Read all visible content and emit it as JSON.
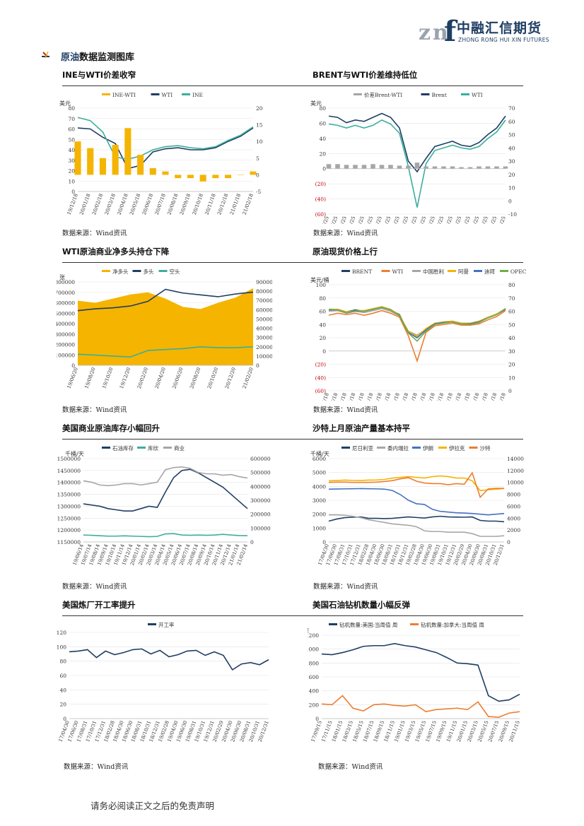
{
  "header": {
    "logo_cn": "中融汇信期货",
    "logo_en": "ZHONG RONG HUI XIN FUTURES"
  },
  "section": {
    "title_hl": "原油",
    "title_rest": "数据监测图库"
  },
  "charts": [
    {
      "title": "INE与WTI价差收窄",
      "source": "数据来源：Wind资讯"
    },
    {
      "title": "BRENT与WTI价差维持低位",
      "source": "数据来源：Wind资讯"
    },
    {
      "title": "WTI原油商业净多头持仓下降",
      "source": "数据来源：Wind资讯"
    },
    {
      "title": "原油现货价格上行",
      "source": "数据来源：Wind资讯"
    },
    {
      "title": "美国商业原油库存小幅回升",
      "source": "数据来源：Wind资讯"
    },
    {
      "title": "沙特上月原油产量基本持平",
      "source": "数据来源：Wind资讯"
    },
    {
      "title": "美国炼厂开工率提升",
      "source": "数据来源：Wind资讯"
    },
    {
      "title": "美国石油钻机数量小幅反弹",
      "source": "数据来源：Wind资讯"
    }
  ],
  "footer": {
    "text": "请务必阅读正文之后的免责声明"
  },
  "colors": {
    "navy": "#1f3e63",
    "orange": "#f5b400",
    "teal": "#3aaf9c",
    "gray": "#a6a6a6",
    "blue": "#4472c4",
    "rust": "#ed7d31",
    "green": "#70ad47"
  },
  "chart_data": [
    {
      "type": "line",
      "ylabel": "美元",
      "legend": [
        "INE-WTI",
        "WTI",
        "INE"
      ],
      "legend_position": "top",
      "x": [
        "19/12/18",
        "20/01/18",
        "20/02/18",
        "20/03/18",
        "20/04/18",
        "20/05/18",
        "20/06/18",
        "20/07/18",
        "20/08/18",
        "20/09/18",
        "20/10/18",
        "20/11/18",
        "20/12/18",
        "21/01/18",
        "21/02/18"
      ],
      "ylim": [
        0,
        80
      ],
      "y_ticks": [
        0,
        10,
        20,
        30,
        40,
        50,
        60,
        70,
        80
      ],
      "y2lim": [
        -5,
        20
      ],
      "y2_ticks": [
        -5,
        0,
        5,
        10,
        15,
        20
      ],
      "series": [
        {
          "name": "WTI",
          "axis": "left",
          "values": [
            61,
            60,
            52,
            46,
            22,
            25,
            38,
            41,
            42,
            40,
            40,
            42,
            48,
            53,
            61
          ]
        },
        {
          "name": "INE",
          "axis": "left",
          "values": [
            71,
            68,
            57,
            33,
            31,
            34,
            40,
            43,
            44,
            42,
            41,
            43,
            49,
            54,
            62
          ]
        },
        {
          "name": "INE-WTI",
          "axis": "right",
          "type": "bar",
          "values": [
            10,
            8,
            5,
            9,
            14,
            6,
            2,
            1,
            -1,
            -1,
            -2,
            -1,
            -1,
            0,
            1
          ]
        }
      ]
    },
    {
      "type": "line",
      "ylabel": "美元",
      "legend": [
        "价差Brent-WTI",
        "Brent",
        "WTI"
      ],
      "legend_position": "top",
      "x": [
        "19/06/25",
        "19/07/25",
        "19/08/25",
        "19/09/25",
        "19/10/25",
        "19/11/25",
        "19/12/25",
        "20/01/25",
        "20/02/25",
        "20/03/25",
        "20/04/25",
        "20/05/25",
        "20/06/25",
        "20/07/25",
        "20/08/25",
        "20/09/25",
        "20/10/25",
        "20/11/25",
        "20/12/25",
        "21/01/25",
        "21/02/25"
      ],
      "ylim": [
        -60,
        80
      ],
      "y_ticks": [
        "(60)",
        "(40)",
        "(20)",
        "0",
        "20",
        "40",
        "60",
        "80"
      ],
      "y2lim": [
        -10,
        70
      ],
      "y2_ticks": [
        -10,
        0,
        10,
        20,
        30,
        40,
        50,
        60,
        70
      ],
      "series": [
        {
          "name": "Brent",
          "axis": "right",
          "values": [
            64,
            63,
            59,
            61,
            60,
            63,
            66,
            63,
            55,
            30,
            22,
            32,
            41,
            43,
            45,
            42,
            41,
            44,
            50,
            55,
            64
          ]
        },
        {
          "name": "WTI",
          "axis": "right",
          "values": [
            58,
            57,
            55,
            57,
            55,
            57,
            61,
            58,
            51,
            26,
            -5,
            28,
            38,
            40,
            42,
            40,
            39,
            41,
            47,
            52,
            61
          ]
        },
        {
          "name": "价差Brent-WTI",
          "axis": "left",
          "type": "bar",
          "values": [
            6,
            6,
            5,
            5,
            5,
            6,
            5,
            5,
            4,
            4,
            8,
            3,
            3,
            3,
            3,
            2,
            2,
            3,
            3,
            3,
            3
          ]
        }
      ]
    },
    {
      "type": "line",
      "ylabel": "张",
      "legend": [
        "净多头",
        "多头",
        "空头"
      ],
      "legend_position": "top",
      "x": [
        "19/06/20",
        "19/08/20",
        "19/10/20",
        "19/12/20",
        "20/02/20",
        "20/04/20",
        "20/06/20",
        "20/08/20",
        "20/10/20",
        "20/12/20",
        "21/02/20"
      ],
      "ylim": [
        0,
        800000
      ],
      "y_ticks": [
        0,
        100000,
        200000,
        300000,
        400000,
        500000,
        600000,
        700000,
        800000
      ],
      "y2lim": [
        0,
        900000
      ],
      "y2_ticks": [
        0,
        100000,
        200000,
        300000,
        400000,
        500000,
        600000,
        700000,
        800000,
        900000
      ],
      "series": [
        {
          "name": "净多头",
          "axis": "left",
          "type": "area",
          "values": [
            620000,
            600000,
            640000,
            680000,
            700000,
            640000,
            560000,
            540000,
            600000,
            650000,
            740000
          ]
        },
        {
          "name": "多头",
          "axis": "right",
          "values": [
            590000,
            610000,
            620000,
            640000,
            690000,
            820000,
            780000,
            760000,
            740000,
            770000,
            790000
          ]
        },
        {
          "name": "空头",
          "axis": "right",
          "values": [
            120000,
            110000,
            100000,
            90000,
            160000,
            170000,
            180000,
            200000,
            190000,
            190000,
            200000
          ]
        }
      ]
    },
    {
      "type": "line",
      "ylabel": "美元/桶",
      "legend": [
        "BRENT",
        "WTI",
        "中国胜利",
        "阿曼",
        "迪拜",
        "OPEC"
      ],
      "legend_position": "top",
      "x": [
        "19/06/18",
        "19/07/18",
        "19/08/18",
        "19/09/18",
        "19/10/18",
        "19/11/18",
        "19/12/18",
        "20/01/18",
        "20/02/18",
        "20/03/18",
        "20/04/18",
        "20/05/18",
        "20/06/18",
        "20/07/18",
        "20/08/18",
        "20/09/18",
        "20/10/18",
        "20/11/18",
        "20/12/18",
        "21/01/18",
        "21/02/18"
      ],
      "ylim": [
        -60,
        100
      ],
      "y_ticks": [
        "(60)",
        "(40)",
        "(20)",
        "0",
        "20",
        "40",
        "60",
        "80",
        "100"
      ],
      "y2lim": [
        0,
        80
      ],
      "y2_ticks": [
        0,
        10,
        20,
        30,
        40,
        50,
        60,
        70,
        80
      ],
      "series": [
        {
          "name": "BRENT",
          "values": [
            62,
            63,
            59,
            62,
            60,
            63,
            66,
            62,
            55,
            28,
            20,
            32,
            41,
            43,
            44,
            41,
            41,
            44,
            50,
            55,
            64
          ]
        },
        {
          "name": "WTI",
          "values": [
            54,
            57,
            55,
            57,
            54,
            57,
            61,
            57,
            51,
            23,
            -15,
            28,
            38,
            40,
            42,
            39,
            39,
            41,
            47,
            52,
            61
          ]
        },
        {
          "name": "中国胜利",
          "values": [
            60,
            61,
            57,
            60,
            58,
            61,
            64,
            60,
            53,
            30,
            24,
            33,
            42,
            44,
            45,
            42,
            42,
            45,
            50,
            55,
            63
          ]
        },
        {
          "name": "阿曼",
          "values": [
            63,
            63,
            59,
            61,
            61,
            64,
            67,
            63,
            54,
            30,
            22,
            34,
            42,
            44,
            45,
            42,
            42,
            45,
            51,
            56,
            64
          ]
        },
        {
          "name": "迪拜",
          "values": [
            62,
            62,
            58,
            60,
            60,
            63,
            66,
            62,
            53,
            28,
            20,
            32,
            41,
            43,
            44,
            41,
            41,
            44,
            50,
            55,
            63
          ]
        },
        {
          "name": "OPEC",
          "values": [
            63,
            62,
            58,
            61,
            60,
            63,
            66,
            62,
            53,
            27,
            15,
            30,
            40,
            42,
            44,
            41,
            40,
            43,
            50,
            55,
            64
          ]
        }
      ]
    },
    {
      "type": "line",
      "ylabel": "千桶/天",
      "legend": [
        "石油库存",
        "库欣",
        "商业"
      ],
      "legend_position": "top",
      "x": [
        "19/06/14",
        "19/07/14",
        "19/08/14",
        "19/09/14",
        "19/10/14",
        "19/11/14",
        "19/12/14",
        "20/01/14",
        "20/02/14",
        "20/03/14",
        "20/04/14",
        "20/05/14",
        "20/06/14",
        "20/07/14",
        "20/08/14",
        "20/09/14",
        "20/10/14",
        "20/11/14",
        "20/12/14",
        "21/01/14",
        "21/02/14"
      ],
      "ylim": [
        1150000,
        1500000
      ],
      "y_ticks": [
        1150000,
        1200000,
        1250000,
        1300000,
        1350000,
        1400000,
        1450000,
        1500000
      ],
      "y2lim": [
        0,
        600000
      ],
      "y2_ticks": [
        0,
        100000,
        200000,
        300000,
        400000,
        500000,
        600000
      ],
      "series": [
        {
          "name": "石油库存",
          "axis": "left",
          "values": [
            1310000,
            1305000,
            1300000,
            1290000,
            1285000,
            1280000,
            1280000,
            1290000,
            1300000,
            1295000,
            1360000,
            1420000,
            1450000,
            1455000,
            1440000,
            1420000,
            1400000,
            1380000,
            1350000,
            1320000,
            1290000
          ]
        },
        {
          "name": "库欣",
          "axis": "right",
          "values": [
            50000,
            48000,
            45000,
            42000,
            42000,
            44000,
            42000,
            40000,
            38000,
            40000,
            58000,
            60000,
            50000,
            48000,
            50000,
            48000,
            50000,
            55000,
            50000,
            46000,
            45000
          ]
        },
        {
          "name": "商业",
          "axis": "right",
          "values": [
            440000,
            430000,
            410000,
            405000,
            410000,
            420000,
            420000,
            410000,
            420000,
            430000,
            520000,
            535000,
            540000,
            530000,
            500000,
            490000,
            490000,
            480000,
            485000,
            470000,
            460000
          ]
        }
      ]
    },
    {
      "type": "line",
      "ylabel": "千桶/天",
      "legend": [
        "尼日利亚",
        "委内瑞拉",
        "伊朗",
        "伊拉克",
        "沙特"
      ],
      "legend_position": "top",
      "x": [
        "17/04/30",
        "17/06/30",
        "17/08/31",
        "17/10/31",
        "17/12/31",
        "18/02/28",
        "18/04/30",
        "18/06/30",
        "18/08/31",
        "18/10/31",
        "18/12/31",
        "19/02/28",
        "19/04/30",
        "19/06/30",
        "19/08/31",
        "19/10/31",
        "19/12/31",
        "20/02/29",
        "20/04/30",
        "20/06/30",
        "20/08/31",
        "20/10/31",
        "20/12/31"
      ],
      "ylim": [
        0,
        6000
      ],
      "y_ticks": [
        0,
        1000,
        2000,
        3000,
        4000,
        5000,
        6000
      ],
      "y2lim": [
        0,
        14000
      ],
      "y2_ticks": [
        0,
        2000,
        4000,
        6000,
        8000,
        10000,
        12000,
        14000
      ],
      "series": [
        {
          "name": "尼日利亚",
          "axis": "left",
          "values": [
            1500,
            1650,
            1750,
            1780,
            1800,
            1700,
            1700,
            1680,
            1700,
            1750,
            1800,
            1760,
            1720,
            1800,
            1850,
            1800,
            1790,
            1780,
            1800,
            1550,
            1500,
            1500,
            1450
          ]
        },
        {
          "name": "委内瑞拉",
          "axis": "left",
          "values": [
            1950,
            1950,
            1920,
            1850,
            1750,
            1600,
            1500,
            1400,
            1300,
            1250,
            1200,
            1100,
            800,
            750,
            750,
            700,
            700,
            700,
            600,
            400,
            400,
            400,
            450
          ]
        },
        {
          "name": "伊朗",
          "axis": "left",
          "values": [
            3800,
            3810,
            3820,
            3830,
            3840,
            3830,
            3820,
            3800,
            3700,
            3400,
            3000,
            2750,
            2700,
            2350,
            2200,
            2150,
            2100,
            2080,
            2050,
            2000,
            1950,
            2000,
            2050
          ]
        },
        {
          "name": "伊拉克",
          "axis": "left",
          "values": [
            4400,
            4420,
            4450,
            4430,
            4420,
            4450,
            4460,
            4500,
            4600,
            4650,
            4700,
            4650,
            4600,
            4700,
            4750,
            4700,
            4600,
            4600,
            4400,
            3700,
            3750,
            3800,
            3850
          ]
        },
        {
          "name": "沙特",
          "axis": "right",
          "values": [
            10000,
            10050,
            10050,
            10000,
            10000,
            10000,
            10050,
            10150,
            10300,
            10600,
            10800,
            10200,
            9900,
            9800,
            9800,
            9600,
            9800,
            9700,
            11600,
            7500,
            8900,
            9000,
            9000
          ]
        }
      ]
    },
    {
      "type": "line",
      "ylabel": "%",
      "legend": [
        "开工率"
      ],
      "legend_position": "top",
      "x": [
        "17/04/30",
        "17/06/30",
        "17/08/31",
        "17/10/31",
        "17/12/31",
        "18/02/28",
        "18/04/30",
        "18/06/30",
        "18/08/31",
        "18/10/31",
        "18/12/31",
        "19/02/28",
        "19/04/30",
        "19/06/30",
        "19/08/31",
        "19/10/31",
        "19/12/31",
        "20/02/29",
        "20/04/30",
        "20/06/30",
        "20/08/31",
        "20/10/31",
        "20/12/31"
      ],
      "ylim": [
        0,
        120
      ],
      "y_ticks": [
        0,
        20,
        40,
        60,
        80,
        100,
        120
      ],
      "series": [
        {
          "name": "开工率",
          "values": [
            93,
            94,
            96,
            85,
            94,
            89,
            92,
            96,
            97,
            90,
            95,
            86,
            89,
            94,
            95,
            88,
            93,
            88,
            68,
            76,
            78,
            75,
            82
          ]
        }
      ]
    },
    {
      "type": "line",
      "ylabel": "座",
      "legend": [
        "钻机数量:美国:当周值 周",
        "钻机数量:加拿大:当周值 周"
      ],
      "legend_position": "top",
      "x": [
        "17/09/15",
        "17/11/15",
        "18/01/15",
        "18/03/15",
        "18/05/15",
        "18/07/15",
        "18/09/15",
        "18/11/15",
        "19/01/15",
        "19/03/15",
        "19/05/15",
        "19/07/15",
        "19/09/15",
        "19/11/15",
        "20/01/15",
        "20/03/15",
        "20/05/15",
        "20/07/15",
        "20/09/15",
        "20/11/15"
      ],
      "ylim": [
        0,
        1200
      ],
      "y_ticks": [
        0,
        200,
        400,
        600,
        800,
        1000,
        1200
      ],
      "series": [
        {
          "name": "钻机数量:美国:当周值 周",
          "values": [
            930,
            920,
            950,
            990,
            1040,
            1050,
            1050,
            1080,
            1050,
            1030,
            990,
            950,
            880,
            800,
            790,
            770,
            330,
            250,
            270,
            350
          ]
        },
        {
          "name": "钻机数量:加拿大:当周值 周",
          "values": [
            210,
            200,
            330,
            150,
            110,
            200,
            210,
            190,
            180,
            200,
            100,
            130,
            140,
            150,
            130,
            240,
            30,
            20,
            80,
            100
          ]
        }
      ]
    }
  ]
}
